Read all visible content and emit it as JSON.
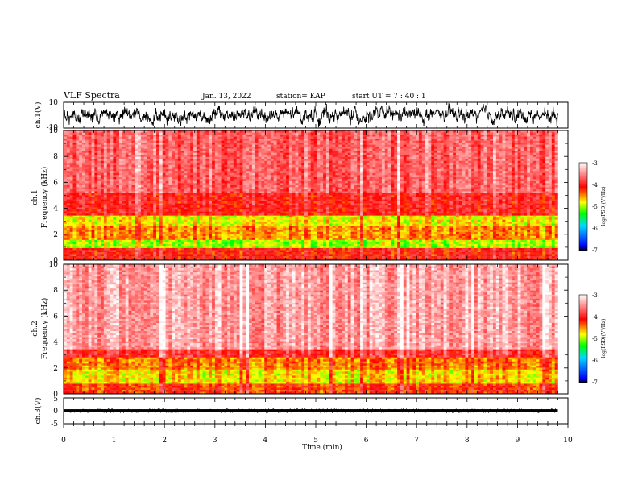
{
  "header": {
    "title": "VLF Spectra",
    "date": "Jan. 13, 2022",
    "station": "station= KAP",
    "start": "start  UT =   7 : 40 : 1"
  },
  "chart_data": [
    {
      "type": "line",
      "panel": "ch1-waveform",
      "ylabel": "ch.1(V)",
      "ylim": [
        -10,
        10
      ],
      "yticks": [
        "10",
        "-10"
      ],
      "xlim": [
        0,
        10
      ],
      "data_extent_x": [
        0,
        9.8
      ],
      "description_values": {
        "typical_range": [
          -8,
          8
        ]
      }
    },
    {
      "type": "heatmap",
      "panel": "ch1-spectrogram",
      "ylabel": "ch.1\nFrequency  (kHz)",
      "ylabel_line1": "ch.1",
      "ylabel_line2": "Frequency  (kHz)",
      "ylim": [
        0,
        10
      ],
      "yticks": [
        "0",
        "2",
        "4",
        "6",
        "8",
        "10"
      ],
      "xlim": [
        0,
        10
      ],
      "data_extent_x": [
        0,
        9.8
      ],
      "bands_kHz": [
        {
          "from": 0,
          "to": 1.0,
          "level": -4.1
        },
        {
          "from": 1.0,
          "to": 1.6,
          "level": -5.0
        },
        {
          "from": 1.6,
          "to": 2.6,
          "level": -4.5
        },
        {
          "from": 2.6,
          "to": 3.5,
          "level": -4.8
        },
        {
          "from": 3.5,
          "to": 5.2,
          "level": -4.0
        },
        {
          "from": 5.2,
          "to": 10,
          "level": -3.7
        }
      ],
      "colorbar": {
        "label": "log(PSD)(V²/Hz)",
        "range": [
          -7,
          -3
        ],
        "ticks": [
          "-3",
          "-4",
          "-5",
          "-6",
          "-7"
        ]
      }
    },
    {
      "type": "heatmap",
      "panel": "ch2-spectrogram",
      "ylabel": "ch.2\nFrequency  (kHz)",
      "ylabel_line1": "ch.2",
      "ylabel_line2": "Frequency  (kHz)",
      "ylim": [
        0,
        10
      ],
      "yticks": [
        "0",
        "2",
        "4",
        "6",
        "8",
        "10"
      ],
      "xlim": [
        0,
        10
      ],
      "data_extent_x": [
        0,
        9.8
      ],
      "bands_kHz": [
        {
          "from": 0,
          "to": 0.8,
          "level": -4.2
        },
        {
          "from": 0.8,
          "to": 1.8,
          "level": -4.7
        },
        {
          "from": 1.8,
          "to": 2.8,
          "level": -4.4
        },
        {
          "from": 2.8,
          "to": 3.5,
          "level": -3.9
        },
        {
          "from": 3.5,
          "to": 10,
          "level": -3.4
        }
      ],
      "colorbar": {
        "label": "log(PSD)(V²/Hz)",
        "range": [
          -7,
          -3
        ],
        "ticks": [
          "-3",
          "-4",
          "-5",
          "-6",
          "-7"
        ]
      }
    },
    {
      "type": "line",
      "panel": "ch3-waveform",
      "ylabel": "ch.3(V)",
      "ylim": [
        -5,
        5
      ],
      "yticks": [
        "5",
        "0",
        "-5"
      ],
      "xlim": [
        0,
        10
      ],
      "xlabel": "Time  (min)",
      "xticks": [
        "0",
        "1",
        "2",
        "3",
        "4",
        "5",
        "6",
        "7",
        "8",
        "9",
        "10"
      ],
      "data_extent_x": [
        0,
        9.8
      ],
      "description_values": {
        "typical_range": [
          -0.6,
          0.6
        ]
      }
    }
  ]
}
